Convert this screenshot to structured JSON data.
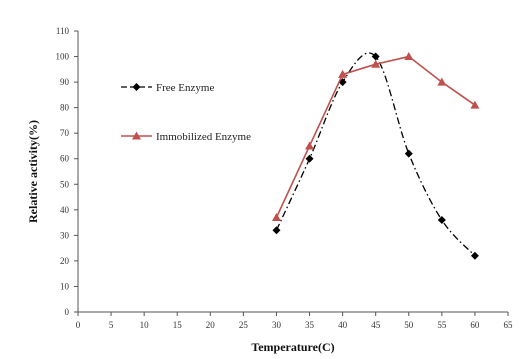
{
  "chart_data": {
    "type": "line",
    "xlabel": "Temperature(C)",
    "ylabel": "Relative activity(%)",
    "xlim": [
      0,
      65
    ],
    "ylim": [
      0,
      110
    ],
    "x_ticks": [
      "0",
      "5",
      "10",
      "15",
      "20",
      "25",
      "30",
      "35",
      "40",
      "45",
      "50",
      "55",
      "60",
      "65"
    ],
    "y_ticks": [
      "0",
      "10",
      "20",
      "30",
      "40",
      "50",
      "60",
      "70",
      "80",
      "90",
      "100",
      "110"
    ],
    "grid": false,
    "legend_position": "left",
    "series": [
      {
        "name": "Free Enzyme",
        "color": "#000000",
        "marker": "diamond",
        "line_style": "dash-dot",
        "x": [
          30,
          35,
          40,
          45,
          50,
          55,
          60
        ],
        "y": [
          32,
          60,
          90,
          100,
          62,
          36,
          22
        ]
      },
      {
        "name": "Immobilized Enzyme",
        "color": "#c0504d",
        "marker": "triangle",
        "line_style": "solid",
        "x": [
          30,
          35,
          40,
          45,
          50,
          55,
          60
        ],
        "y": [
          37,
          65,
          93,
          97,
          100,
          90,
          81
        ]
      }
    ]
  }
}
